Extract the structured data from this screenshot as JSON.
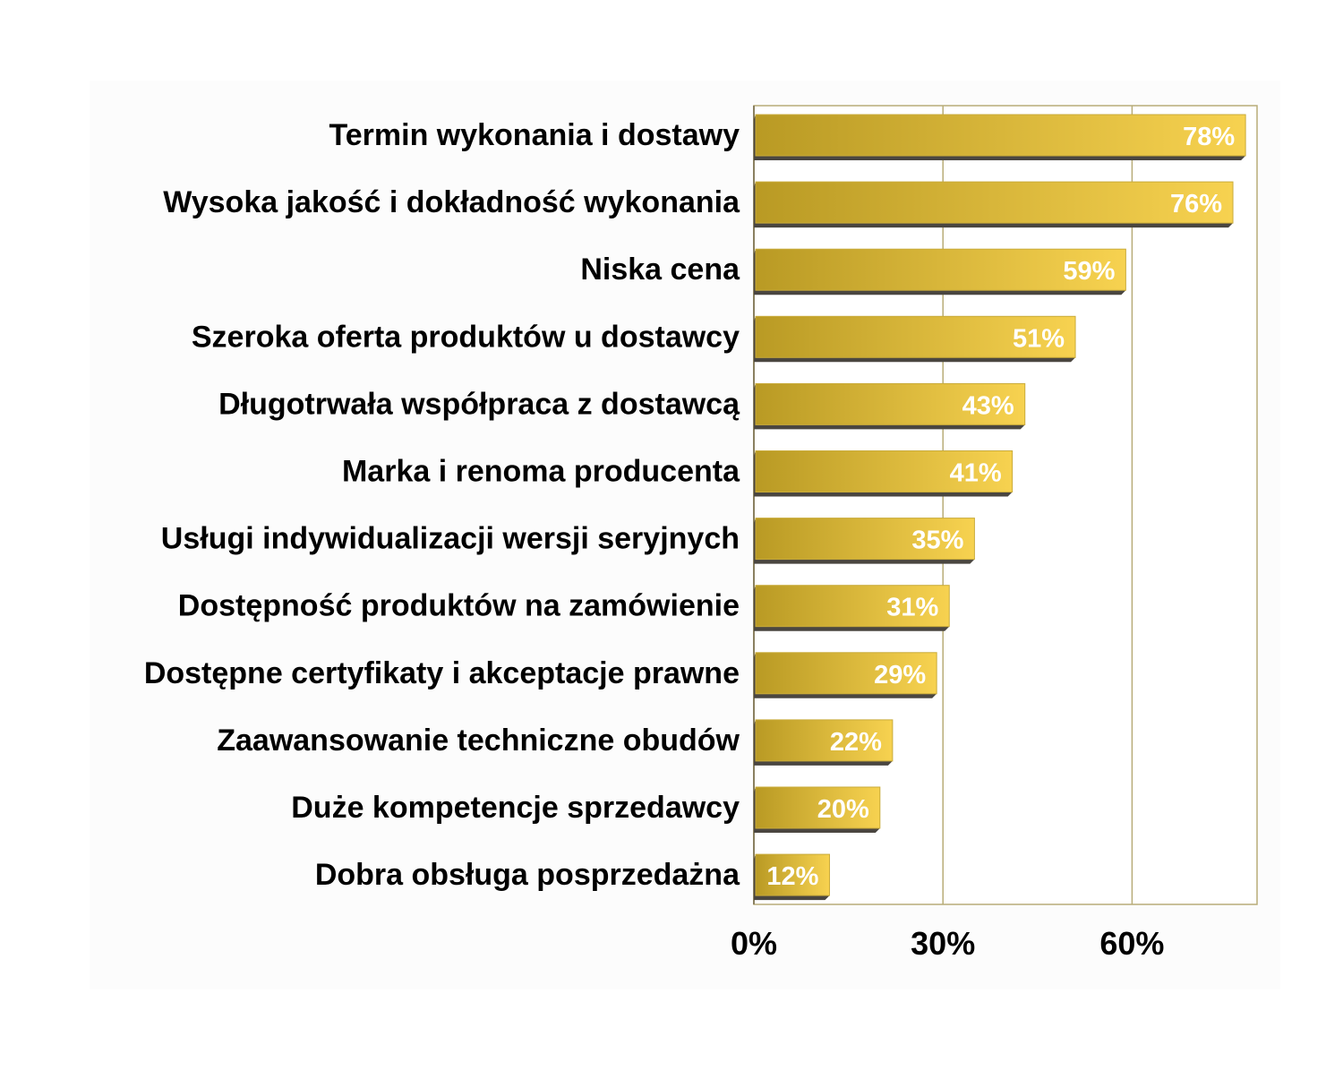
{
  "colors": {
    "background": "#ffffff",
    "plot_background": "#fcfcfc",
    "gridline": "#b8ac78",
    "plot_border": "#b8ac78",
    "bar_light": "#f7d250",
    "bar_dark": "#b99a24",
    "bar_shadow": "#4a4640",
    "category_text": "#000000",
    "value_text": "#ffffff",
    "tick_text": "#000000"
  },
  "chart_data": {
    "type": "bar",
    "orientation": "horizontal",
    "categories": [
      "Termin wykonania i dostawy",
      "Wysoka jakość i dokładność wykonania",
      "Niska cena",
      "Szeroka oferta produktów u dostawcy",
      "Długotrwała współpraca z dostawcą",
      "Marka i renoma producenta",
      "Usługi indywidualizacji wersji seryjnych",
      "Dostępność produktów na zamówienie",
      "Dostępne certyfikaty i akceptacje prawne",
      "Zaawansowanie techniczne obudów",
      "Duże kompetencje sprzedawcy",
      "Dobra obsługa posprzedażna"
    ],
    "values": [
      78,
      76,
      59,
      51,
      43,
      41,
      35,
      31,
      29,
      22,
      20,
      12
    ],
    "value_labels": [
      "78%",
      "76%",
      "59%",
      "51%",
      "43%",
      "41%",
      "35%",
      "31%",
      "29%",
      "22%",
      "20%",
      "12%"
    ],
    "xlim": [
      0,
      80
    ],
    "xticks": [
      0,
      30,
      60
    ],
    "xtick_labels": [
      "0%",
      "30%",
      "60%"
    ],
    "grid": true,
    "title": "",
    "xlabel": "",
    "ylabel": ""
  }
}
